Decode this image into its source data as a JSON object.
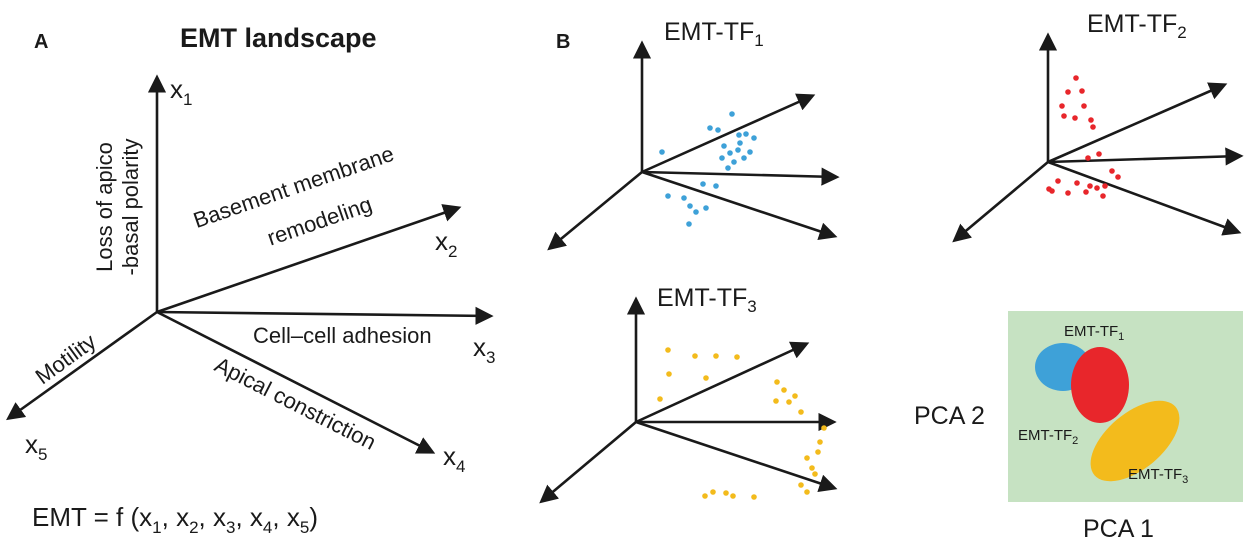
{
  "panel_a": {
    "label": "A",
    "title": "EMT landscape",
    "axis_vars": [
      "x",
      "x",
      "x",
      "x",
      "x"
    ],
    "axis_subs": [
      "1",
      "2",
      "3",
      "4",
      "5"
    ],
    "axis_labels": {
      "x1_line1": "Loss of apico",
      "x1_line2": "-basal polarity",
      "x2_line1": "Basement membrane",
      "x2_line2": "remodeling",
      "x3": "Cell–cell adhesion",
      "x4": "Apical constriction",
      "x5": "Motility"
    },
    "formula": {
      "prefix": "EMT = f (x",
      "subs": [
        "1",
        "2",
        "3",
        "4",
        "5"
      ],
      "seps": [
        ", x",
        ", x",
        ", x",
        ", x",
        ")"
      ]
    }
  },
  "panel_b": {
    "label": "B",
    "plots": [
      {
        "name_main": "EMT-TF",
        "name_sub": "1",
        "color": "#3ea1d8"
      },
      {
        "name_main": "EMT-TF",
        "name_sub": "2",
        "color": "#e8262b"
      },
      {
        "name_main": "EMT-TF",
        "name_sub": "3",
        "color": "#f3bb1c"
      }
    ],
    "pca": {
      "background": "#c6e2c2",
      "xlabel": "PCA 1",
      "ylabel": "PCA 2",
      "clusters": [
        {
          "main": "EMT-TF",
          "sub": "1",
          "color": "#3ea1d8"
        },
        {
          "main": "EMT-TF",
          "sub": "2",
          "color": "#e8262b"
        },
        {
          "main": "EMT-TF",
          "sub": "3",
          "color": "#f3bb1c"
        }
      ]
    }
  }
}
